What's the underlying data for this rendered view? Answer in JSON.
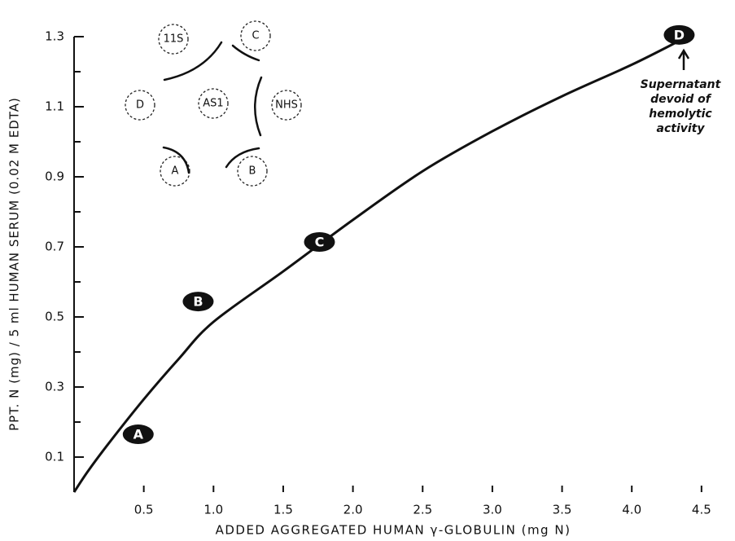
{
  "chart_data": {
    "type": "line",
    "y_label": "PPT. N (mg) / 5 ml HUMAN SERUM (0.02 M EDTA)",
    "x_label": "ADDED AGGREGATED HUMAN γ-GLOBULIN (mg N)",
    "xlim": [
      0,
      4.6
    ],
    "ylim": [
      0,
      1.35
    ],
    "xticks": [
      0.5,
      {
        "value": 1,
        "label": "1.0"
      },
      1.5,
      {
        "value": 2,
        "label": "2.0"
      },
      2.5,
      {
        "value": 3,
        "label": "3.0"
      },
      3.5,
      {
        "value": 4,
        "label": "4.0"
      },
      4.5
    ],
    "yticks": [
      0.1,
      0.3,
      0.5,
      0.7,
      0.9,
      1.1,
      1.3
    ],
    "yminor": [
      0.2,
      0.4,
      0.6,
      0.8,
      1.0,
      1.2
    ],
    "curve": {
      "color": "#111",
      "x": [
        0,
        0.1,
        0.25,
        0.5,
        0.75,
        1,
        1.5,
        2,
        2.5,
        3,
        3.5,
        4,
        4.35
      ],
      "values": [
        0,
        0.06,
        0.14,
        0.265,
        0.38,
        0.486,
        0.63,
        0.777,
        0.916,
        1.03,
        1.13,
        1.22,
        1.29
      ]
    },
    "points": {
      "color": "#111",
      "labels": [
        "A",
        "B",
        "C",
        "D"
      ],
      "x": [
        0.46,
        0.89,
        1.76,
        4.34
      ],
      "values": [
        0.165,
        0.544,
        0.714,
        1.305
      ]
    },
    "annotation": [
      "Supernatant",
      "devoid of",
      "hemolytic",
      "activity"
    ],
    "inset": {
      "wells": [
        "11S",
        "C",
        "D",
        "AS1",
        "NHS",
        "A",
        "B"
      ]
    }
  }
}
